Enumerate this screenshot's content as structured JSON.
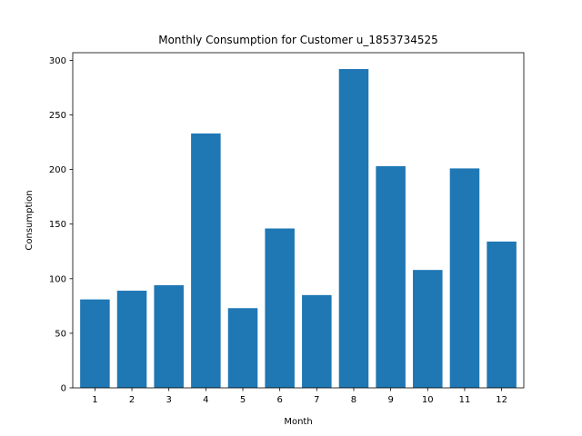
{
  "chart_data": {
    "type": "bar",
    "title": "Monthly Consumption for Customer u_1853734525",
    "xlabel": "Month",
    "ylabel": "Consumption",
    "categories": [
      "1",
      "2",
      "3",
      "4",
      "5",
      "6",
      "7",
      "8",
      "9",
      "10",
      "11",
      "12"
    ],
    "values": [
      81,
      89,
      94,
      233,
      73,
      146,
      85,
      292,
      203,
      108,
      201,
      134
    ],
    "ylim": [
      0,
      307
    ],
    "yticks": [
      0,
      50,
      100,
      150,
      200,
      250,
      300
    ],
    "bar_color": "#1f77b4",
    "grid": false,
    "legend": "none"
  }
}
